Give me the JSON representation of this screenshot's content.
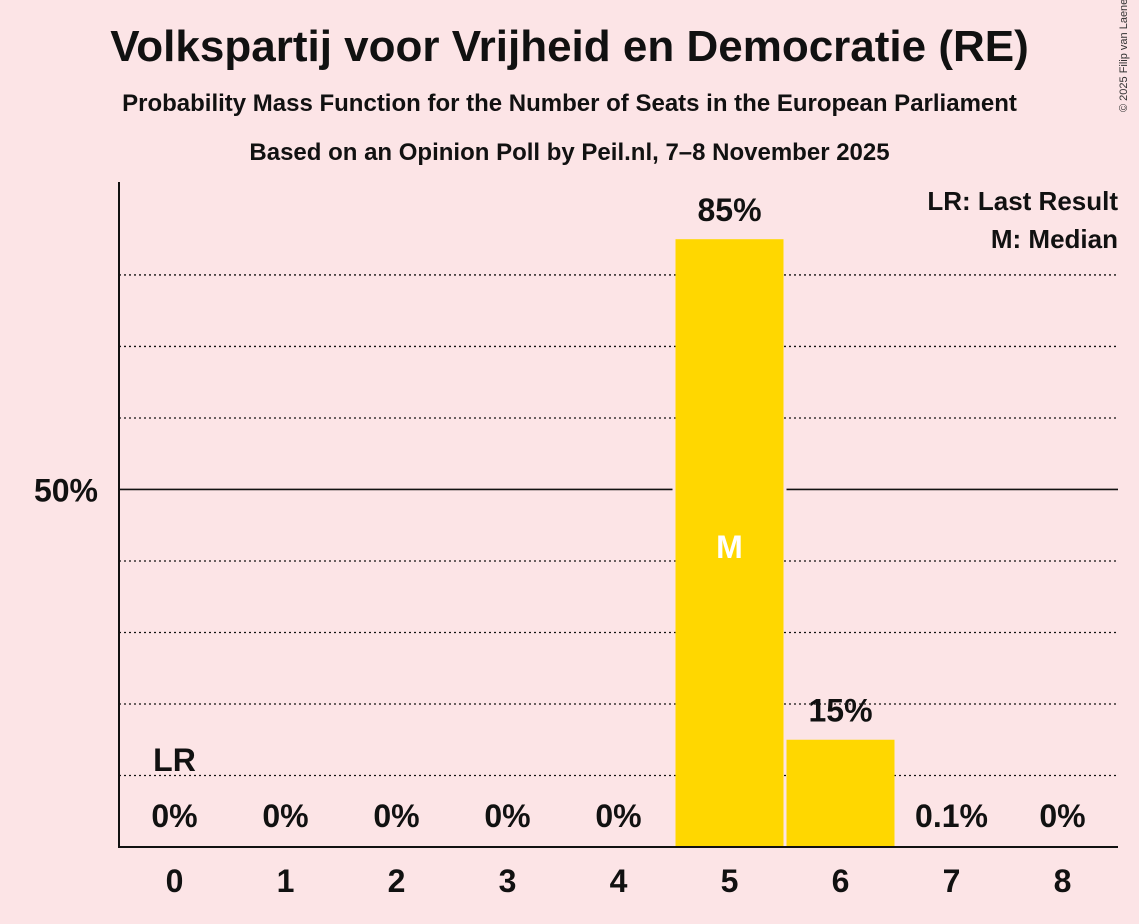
{
  "title": "Volkspartij voor Vrijheid en Democratie (RE)",
  "subtitle": "Probability Mass Function for the Number of Seats in the European Parliament",
  "subtitle2": "Based on an Opinion Poll by Peil.nl, 7–8 November 2025",
  "copyright": "© 2025 Filip van Laenen",
  "colors": {
    "background": "#fce4e6",
    "bar": "#ffd700",
    "axis": "#111111",
    "median_text": "#ffffff"
  },
  "chart_data": {
    "type": "bar",
    "title": "Volkspartij voor Vrijheid en Democratie (RE)",
    "xlabel": "",
    "ylabel": "",
    "categories": [
      "0",
      "1",
      "2",
      "3",
      "4",
      "5",
      "6",
      "7",
      "8"
    ],
    "values": [
      0,
      0,
      0,
      0,
      0,
      85,
      15,
      0.1,
      0
    ],
    "value_labels": [
      "0%",
      "0%",
      "0%",
      "0%",
      "0%",
      "85%",
      "15%",
      "0.1%",
      "0%"
    ],
    "ylim": [
      0,
      93
    ],
    "y_tick_label": "50%",
    "y_tick_value": 50,
    "gridlines": [
      10,
      20,
      30,
      40,
      60,
      70,
      80
    ],
    "last_result_category": "0",
    "last_result_marker": "LR",
    "median_category": "5",
    "median_marker": "M",
    "legend": [
      "LR: Last Result",
      "M: Median"
    ],
    "legend_position": "top-right"
  }
}
